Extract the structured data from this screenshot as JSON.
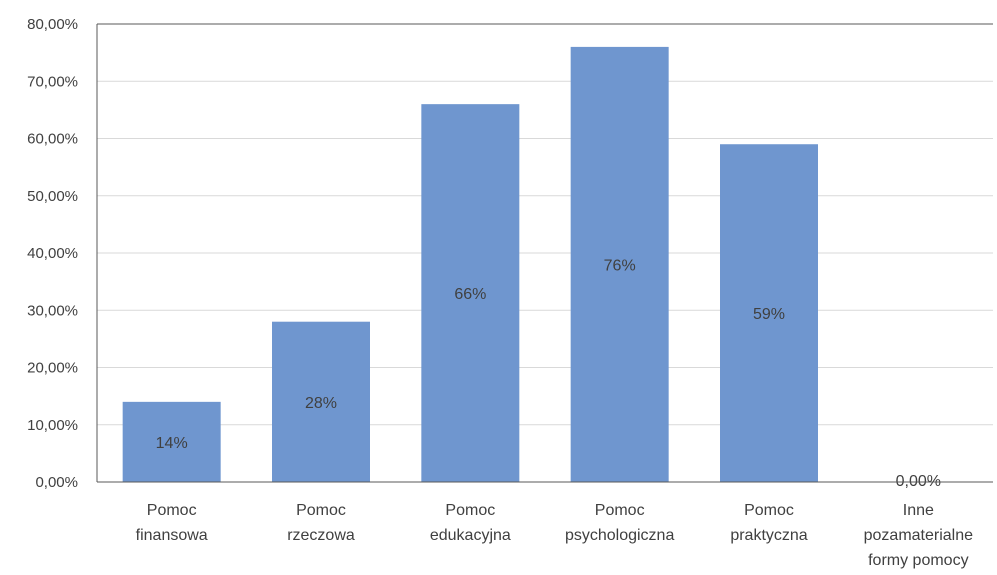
{
  "chart_data": {
    "type": "bar",
    "categories": [
      [
        "Pomoc",
        "finansowa"
      ],
      [
        "Pomoc",
        "rzeczowa"
      ],
      [
        "Pomoc",
        "edukacyjna"
      ],
      [
        "Pomoc",
        "psychologiczna"
      ],
      [
        "Pomoc",
        "praktyczna"
      ],
      [
        "Inne",
        "pozamaterialne",
        "formy pomocy"
      ]
    ],
    "values": [
      14,
      28,
      66,
      76,
      59,
      0
    ],
    "data_labels": [
      "14%",
      "28%",
      "66%",
      "76%",
      "59%",
      "0,00%"
    ],
    "ylim": [
      0,
      80
    ],
    "yticks": [
      0,
      10,
      20,
      30,
      40,
      50,
      60,
      70,
      80
    ],
    "ytick_labels": [
      "0,00%",
      "10,00%",
      "20,00%",
      "30,00%",
      "40,00%",
      "50,00%",
      "60,00%",
      "70,00%",
      "80,00%"
    ],
    "grid": true,
    "legend": "none",
    "colors": {
      "bar": "#6f96cf",
      "grid": "#d9d9d9",
      "axis": "#595959",
      "text": "#404040"
    }
  }
}
